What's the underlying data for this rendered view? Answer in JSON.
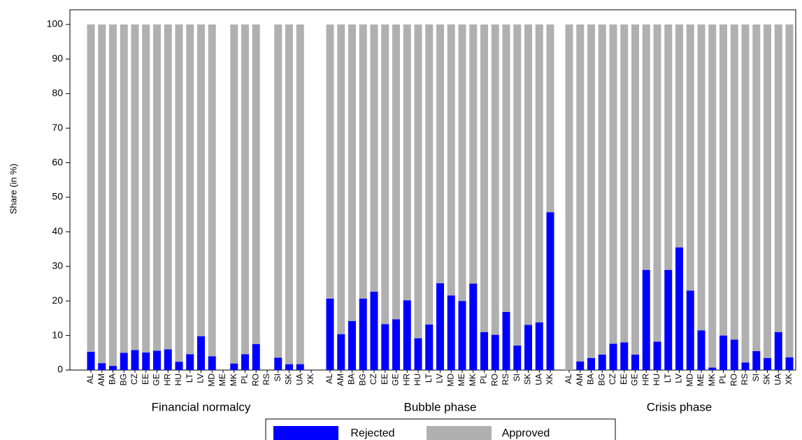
{
  "chart_data": {
    "type": "bar",
    "stacked": true,
    "ylabel": "Share (in %)",
    "ylim": [
      0,
      100
    ],
    "yticks": [
      0,
      10,
      20,
      30,
      40,
      50,
      60,
      70,
      80,
      90,
      100
    ],
    "legend": "bottom",
    "series": [
      {
        "name": "Rejected",
        "color": "#0000ff"
      },
      {
        "name": "Approved",
        "color": "#b0b0b0"
      }
    ],
    "panels": [
      {
        "title": "Financial normalcy",
        "categories": [
          "AL",
          "AM",
          "BA",
          "BG",
          "CZ",
          "EE",
          "GE",
          "HR",
          "HU",
          "LT",
          "LV",
          "MD",
          "ME",
          "MK",
          "PL",
          "RO",
          "RS",
          "SI",
          "SK",
          "UA",
          "XK"
        ],
        "series": [
          {
            "values": [
              5.3,
              2,
              1.2,
              5,
              5.8,
              5.1,
              5.6,
              6,
              2.4,
              4.6,
              9.8,
              4,
              null,
              1.9,
              4.6,
              7.5,
              null,
              3.6,
              1.7,
              1.7,
              null
            ]
          },
          {
            "values": [
              94.7,
              98,
              98.8,
              95,
              94.2,
              94.9,
              94.4,
              94,
              97.6,
              95.4,
              90.2,
              96,
              null,
              98.1,
              95.4,
              92.5,
              null,
              96.4,
              98.3,
              98.3,
              null
            ]
          }
        ]
      },
      {
        "title": "Bubble phase",
        "categories": [
          "AL",
          "AM",
          "BA",
          "BG",
          "CZ",
          "EE",
          "GE",
          "HR",
          "HU",
          "LT",
          "LV",
          "MD",
          "ME",
          "MK",
          "PL",
          "RO",
          "RS",
          "SI",
          "SK",
          "UA",
          "XK"
        ],
        "series": [
          {
            "values": [
              20.7,
              10.4,
              14.2,
              20.7,
              22.7,
              13.3,
              14.7,
              20.2,
              9.2,
              13.2,
              25.1,
              21.6,
              20,
              25,
              11,
              10.2,
              16.8,
              7.1,
              13.1,
              13.8,
              45.7
            ]
          },
          {
            "values": [
              79.3,
              89.6,
              85.8,
              79.3,
              77.3,
              86.7,
              85.3,
              79.8,
              90.8,
              86.8,
              74.9,
              78.4,
              80,
              75,
              89,
              89.8,
              83.2,
              92.9,
              86.9,
              86.2,
              54.3
            ]
          }
        ]
      },
      {
        "title": "Crisis phase",
        "categories": [
          "AL",
          "AM",
          "BA",
          "BG",
          "CZ",
          "EE",
          "GE",
          "HR",
          "HU",
          "LT",
          "LV",
          "MD",
          "ME",
          "MK",
          "PL",
          "RO",
          "RS",
          "SI",
          "SK",
          "UA",
          "XK"
        ],
        "series": [
          {
            "values": [
              null,
              2.5,
              3.5,
              4.5,
              7.6,
              8,
              4.5,
              29,
              8.2,
              29,
              35.5,
              23,
              11.5,
              0.7,
              10,
              8.8,
              2.2,
              5.5,
              3.5,
              11,
              3.7
            ]
          },
          {
            "values": [
              100,
              97.5,
              96.5,
              95.5,
              92.4,
              92,
              95.5,
              71,
              91.8,
              71,
              64.5,
              77,
              88.5,
              99.3,
              90,
              91.2,
              97.8,
              94.5,
              96.5,
              89,
              96.3
            ]
          }
        ]
      }
    ]
  }
}
